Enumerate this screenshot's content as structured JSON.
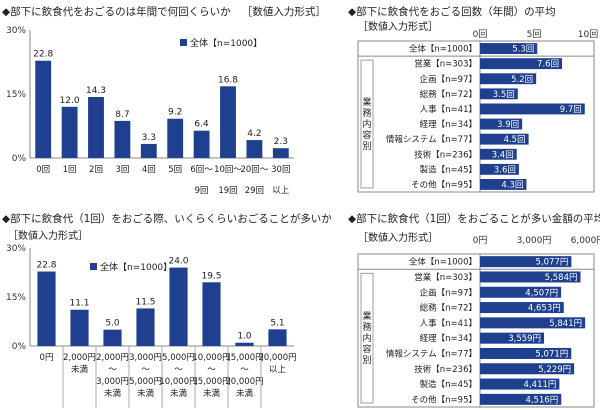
{
  "chart_data": [
    {
      "type": "bar",
      "title": "◆部下に飲食代をおごるのは年間で何回くらいか",
      "subtitle": "［数値入力形式］",
      "legend": "全体【n=1000】",
      "y_ticks": [
        "0%",
        "15%",
        "30%"
      ],
      "ylim": [
        0,
        30
      ],
      "categories": [
        [
          "0回"
        ],
        [
          "1回"
        ],
        [
          "2回"
        ],
        [
          "3回"
        ],
        [
          "4回"
        ],
        [
          "5回"
        ],
        [
          "6回～",
          "9回"
        ],
        [
          "10回～",
          "19回"
        ],
        [
          "20回～",
          "29回"
        ],
        [
          "30回",
          "以上"
        ]
      ],
      "values": [
        22.8,
        12.0,
        14.3,
        8.7,
        3.3,
        9.2,
        6.4,
        16.8,
        4.2,
        2.3
      ],
      "value_labels": [
        "22.8",
        "12.0",
        "14.3",
        "8.7",
        "3.3",
        "9.2",
        "6.4",
        "16.8",
        "4.2",
        "2.3"
      ],
      "color": "#1f3f8f"
    },
    {
      "type": "bar",
      "orientation": "horizontal",
      "title": "◆部下に飲食代をおごる回数（年間）の平均",
      "subtitle": "［数値入力形式］",
      "x_ticks": [
        "0回",
        "5回",
        "10回"
      ],
      "xlim": [
        0,
        10
      ],
      "group_label": "業務内容別",
      "categories": [
        "全体【n=1000】",
        "営業【n=303】",
        "企画【n=97】",
        "総務【n=72】",
        "人事【n=41】",
        "経理【n=34】",
        "情報システム【n=77】",
        "技術【n=236】",
        "製造【n=45】",
        "その他【n=95】"
      ],
      "values": [
        5.3,
        7.6,
        5.2,
        3.5,
        9.7,
        3.9,
        4.5,
        3.4,
        3.6,
        4.3
      ],
      "value_labels": [
        "5.3回",
        "7.6回",
        "5.2回",
        "3.5回",
        "9.7回",
        "3.9回",
        "4.5回",
        "3.4回",
        "3.6回",
        "4.3回"
      ],
      "color": "#1f3f8f"
    },
    {
      "type": "bar",
      "title": "◆部下に飲食代（1回）をおごる際、いくらくらいおごることが多いか",
      "subtitle": "［数値入力形式］",
      "legend": "全体【n=1000】",
      "y_ticks": [
        "0%",
        "15%",
        "30%"
      ],
      "ylim": [
        0,
        30
      ],
      "categories": [
        [
          "0円"
        ],
        [
          "2,000円",
          "未満"
        ],
        [
          "2,000円",
          "～",
          "3,000円",
          "未満"
        ],
        [
          "3,000円",
          "～",
          "5,000円",
          "未満"
        ],
        [
          "5,000円",
          "～",
          "10,000円",
          "未満"
        ],
        [
          "10,000円",
          "～",
          "15,000円",
          "未満"
        ],
        [
          "15,000円",
          "～",
          "20,000円",
          "未満"
        ],
        [
          "20,000円",
          "以上"
        ]
      ],
      "values": [
        22.8,
        11.1,
        5.0,
        11.5,
        24.0,
        19.5,
        1.0,
        5.1
      ],
      "value_labels": [
        "22.8",
        "11.1",
        "5.0",
        "11.5",
        "24.0",
        "19.5",
        "1.0",
        "5.1"
      ],
      "color": "#1f3f8f"
    },
    {
      "type": "bar",
      "orientation": "horizontal",
      "title": "◆部下に飲食代（1回）をおごることが多い金額の平均",
      "subtitle": "［数値入力形式］",
      "x_ticks": [
        "0円",
        "3,000円",
        "6,000円"
      ],
      "xlim": [
        0,
        6000
      ],
      "group_label": "業務内容別",
      "categories": [
        "全体【n=1000】",
        "営業【n=303】",
        "企画【n=97】",
        "総務【n=72】",
        "人事【n=41】",
        "経理【n=34】",
        "情報システム【n=77】",
        "技術【n=236】",
        "製造【n=45】",
        "その他【n=95】"
      ],
      "values": [
        5077,
        5584,
        4507,
        4653,
        5841,
        3559,
        5071,
        5229,
        4411,
        4516
      ],
      "value_labels": [
        "5,077円",
        "5,584円",
        "4,507円",
        "4,653円",
        "5,841円",
        "3,559円",
        "5,071円",
        "5,229円",
        "4,411円",
        "4,516円"
      ],
      "color": "#1f3f8f"
    }
  ]
}
